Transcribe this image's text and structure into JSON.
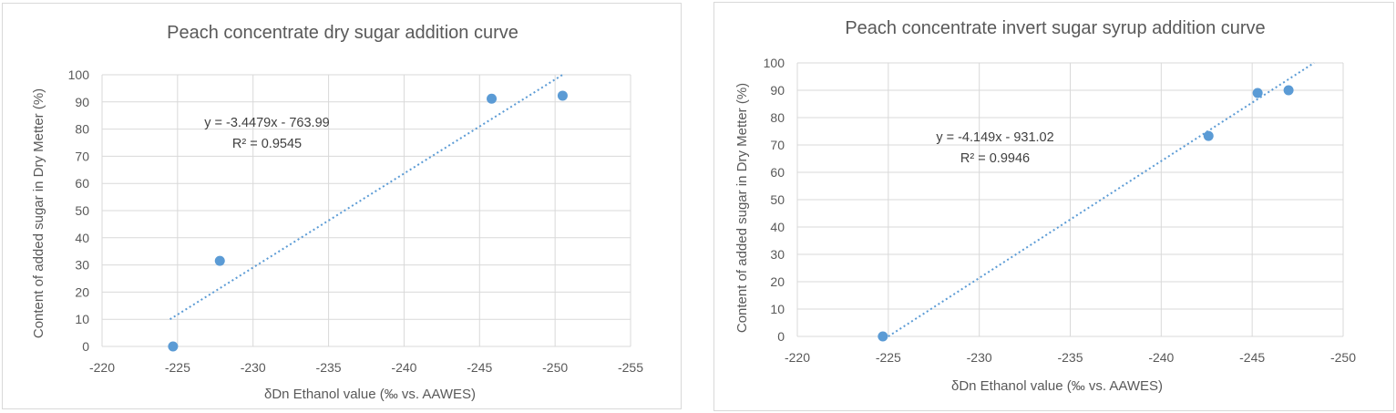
{
  "chart_data": [
    {
      "type": "scatter",
      "title": "Peach concentrate dry sugar addition curve",
      "xlabel": "δDn Ethanol value (‰ vs. AAWES)",
      "ylabel": "Content of added sugar in Dry Metter (%)",
      "xlim": [
        -220,
        -255
      ],
      "ylim": [
        0,
        100
      ],
      "xticks": [
        "-220",
        "-225",
        "-230",
        "-235",
        "-240",
        "-245",
        "-250",
        "-255"
      ],
      "yticks": [
        "0",
        "10",
        "20",
        "30",
        "40",
        "50",
        "60",
        "70",
        "80",
        "90",
        "100"
      ],
      "grid": "horizontal",
      "points": [
        {
          "x": -224.7,
          "y": 0
        },
        {
          "x": -227.8,
          "y": 31.5
        },
        {
          "x": -245.8,
          "y": 91.2
        },
        {
          "x": -250.5,
          "y": 92.3
        }
      ],
      "trendline": {
        "x": [
          -224.5,
          -250.5
        ],
        "y": [
          10,
          100
        ]
      },
      "equation": "y = -3.4479x - 763.99",
      "r2": "R² = 0.9545"
    },
    {
      "type": "scatter",
      "title": "Peach concentrate invert sugar syrup addition curve",
      "xlabel": "δDn Ethanol value (‰ vs. AAWES)",
      "ylabel": "Content of added sugar in Dry Metter (%)",
      "xlim": [
        -220,
        -250
      ],
      "ylim": [
        0,
        100
      ],
      "xticks": [
        "-220",
        "-225",
        "-230",
        "-235",
        "-240",
        "-245",
        "-250"
      ],
      "yticks": [
        "0",
        "10",
        "20",
        "30",
        "40",
        "50",
        "60",
        "70",
        "80",
        "90",
        "100"
      ],
      "grid": "horizontal",
      "points": [
        {
          "x": -224.7,
          "y": 0
        },
        {
          "x": -242.6,
          "y": 73.3
        },
        {
          "x": -245.3,
          "y": 89.0
        },
        {
          "x": -247.0,
          "y": 90.0
        }
      ],
      "trendline": {
        "x": [
          -225.0,
          -248.4
        ],
        "y": [
          0,
          100
        ]
      },
      "equation": "y = -4.149x - 931.02",
      "r2": "R² = 0.9946"
    }
  ]
}
